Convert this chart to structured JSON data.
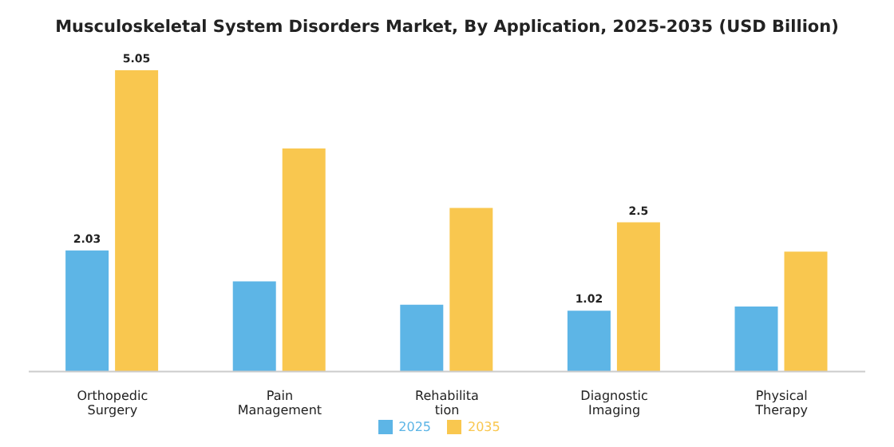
{
  "chart_data": {
    "type": "bar",
    "title": "Musculoskeletal System Disorders Market, By Application, 2025-2035 (USD Billion)",
    "categories": [
      "Orthopedic\nSurgery",
      "Pain\nManagement",
      "Rehabilita\ntion",
      "Diagnostic\nImaging",
      "Physical\nTherapy"
    ],
    "series": [
      {
        "name": "2025",
        "color": "#5db5e6",
        "values": [
          2.03,
          1.51,
          1.12,
          1.02,
          1.09
        ],
        "value_labels": [
          "2.03",
          null,
          null,
          "1.02",
          null
        ]
      },
      {
        "name": "2035",
        "color": "#f9c74f",
        "values": [
          5.05,
          3.74,
          2.74,
          2.5,
          2.01
        ],
        "value_labels": [
          "5.05",
          null,
          null,
          "2.5",
          null
        ]
      }
    ],
    "legend": "bottom",
    "grid": false
  }
}
